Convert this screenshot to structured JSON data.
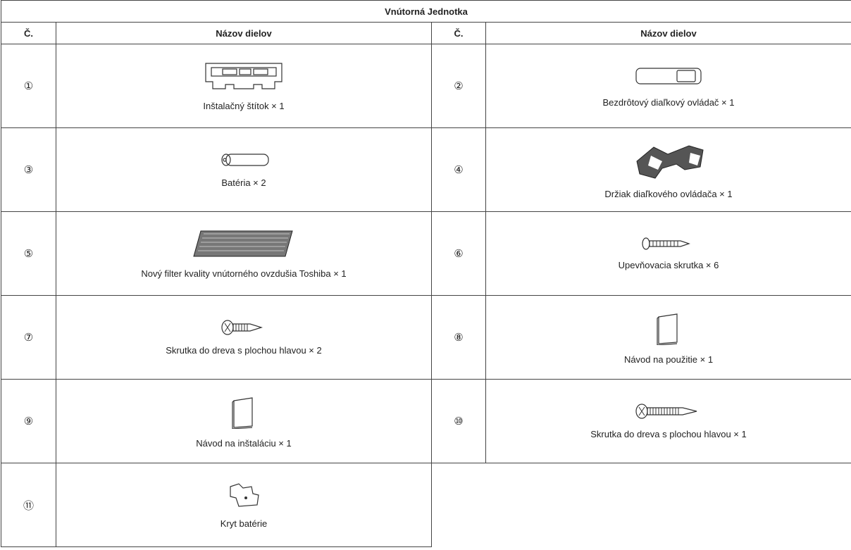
{
  "table": {
    "title": "Vnútorná Jednotka",
    "header": [
      "Č.",
      "Názov dielov",
      "Č.",
      "Názov dielov"
    ],
    "items": [
      {
        "number": "①",
        "name": "Inštalačný štítok × 1"
      },
      {
        "number": "②",
        "name": "Bezdrôtový diaľkový ovládač × 1"
      },
      {
        "number": "③",
        "name": "Batéria × 2"
      },
      {
        "number": "④",
        "name": "Držiak diaľkového ovládača × 1"
      },
      {
        "number": "⑤",
        "name": "Nový filter kvality vnútorného ovzdušia Toshiba × 1"
      },
      {
        "number": "⑥",
        "name": "Upevňovacia skrutka × 6"
      },
      {
        "number": "⑦",
        "name": "Skrutka do dreva s plochou hlavou × 2"
      },
      {
        "number": "⑧",
        "name": "Návod na použitie × 1"
      },
      {
        "number": "⑨",
        "name": "Návod na inštaláciu × 1"
      },
      {
        "number": "⑩",
        "name": "Skrutka do dreva s plochou hlavou × 1"
      },
      {
        "number": "⑪",
        "name": "Kryt batérie"
      }
    ]
  }
}
